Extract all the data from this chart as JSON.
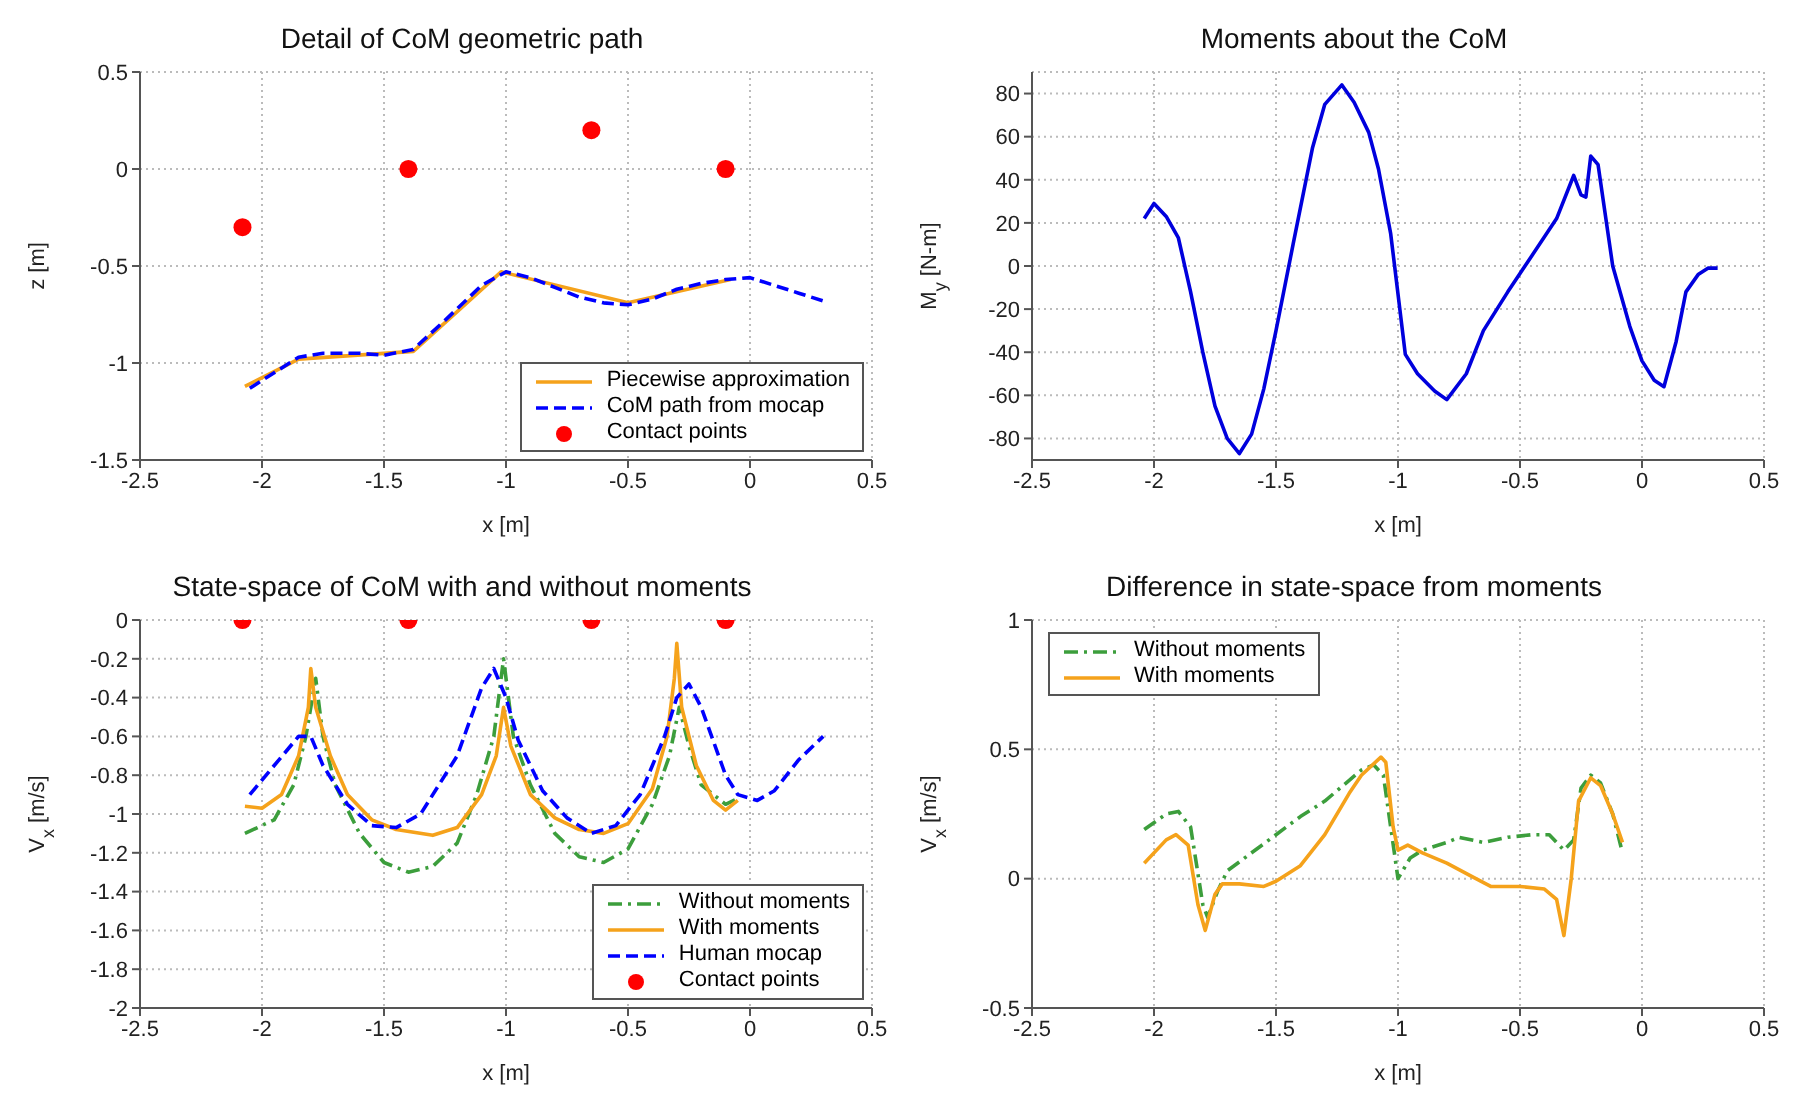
{
  "chart_data": [
    {
      "type": "line",
      "title": "Detail of CoM geometric path",
      "xlabel": "x [m]",
      "ylabel": "z [m]",
      "xlim": [
        -2.5,
        0.5
      ],
      "xticks": [
        -2.5,
        -2,
        -1.5,
        -1,
        -0.5,
        0,
        0.5
      ],
      "ylim": [
        -1.5,
        0.5
      ],
      "yticks": [
        -1.5,
        -1,
        -0.5,
        0,
        0.5
      ],
      "grid": true,
      "legend": "bottom right",
      "series": [
        {
          "name": "Piecewise approximation",
          "color": "#f5a21b",
          "line_style": "solid",
          "marker": "none",
          "x": [
            -2.07,
            -1.85,
            -1.38,
            -1.02,
            -0.5,
            -0.08
          ],
          "values": [
            -1.12,
            -0.98,
            -0.94,
            -0.53,
            -0.69,
            -0.57
          ]
        },
        {
          "name": "CoM path from mocap",
          "color": "#0000ff",
          "line_style": "dashed",
          "marker": "none",
          "x": [
            -2.05,
            -1.95,
            -1.85,
            -1.75,
            -1.6,
            -1.5,
            -1.38,
            -1.25,
            -1.1,
            -1.0,
            -0.9,
            -0.8,
            -0.7,
            -0.6,
            -0.5,
            -0.4,
            -0.3,
            -0.2,
            -0.1,
            0,
            0.1,
            0.2,
            0.3
          ],
          "values": [
            -1.13,
            -1.05,
            -0.97,
            -0.95,
            -0.95,
            -0.96,
            -0.93,
            -0.78,
            -0.6,
            -0.53,
            -0.56,
            -0.61,
            -0.66,
            -0.69,
            -0.7,
            -0.67,
            -0.62,
            -0.59,
            -0.57,
            -0.56,
            -0.6,
            -0.64,
            -0.68
          ]
        },
        {
          "name": "Contact points",
          "type": "scatter",
          "color": "#ff0000",
          "marker": "circle",
          "x": [
            -2.08,
            -1.4,
            -0.65,
            -0.1
          ],
          "values": [
            -0.3,
            0,
            0.2,
            0
          ]
        }
      ]
    },
    {
      "type": "line",
      "title": "Moments about the CoM",
      "xlabel": "x [m]",
      "ylabel": "M$_{y}$ [N-m]",
      "xlim": [
        -2.5,
        0.5
      ],
      "xticks": [
        -2.5,
        -2,
        -1.5,
        -1,
        -0.5,
        0,
        0.5
      ],
      "ylim": [
        -90,
        90
      ],
      "yticks": [
        -80,
        -60,
        -40,
        -20,
        0,
        20,
        40,
        60,
        80
      ],
      "grid": true,
      "series": [
        {
          "color": "#0000dd",
          "line_style": "solid",
          "marker": "none",
          "x": [
            -2.04,
            -2.0,
            -1.95,
            -1.9,
            -1.85,
            -1.8,
            -1.75,
            -1.7,
            -1.65,
            -1.6,
            -1.55,
            -1.5,
            -1.43,
            -1.35,
            -1.3,
            -1.23,
            -1.18,
            -1.12,
            -1.08,
            -1.03,
            -0.97,
            -0.92,
            -0.85,
            -0.8,
            -0.72,
            -0.65,
            -0.55,
            -0.45,
            -0.35,
            -0.28,
            -0.25,
            -0.23,
            -0.21,
            -0.18,
            -0.12,
            -0.05,
            0,
            0.05,
            0.09,
            0.14,
            0.18,
            0.23,
            0.27,
            0.31
          ],
          "values": [
            22,
            29,
            23,
            13,
            -12,
            -40,
            -65,
            -80,
            -87,
            -78,
            -57,
            -30,
            10,
            55,
            75,
            84,
            76,
            62,
            45,
            15,
            -41,
            -50,
            -58,
            -62,
            -50,
            -30,
            -12,
            5,
            22,
            42,
            33,
            32,
            51,
            47,
            0,
            -28,
            -44,
            -53,
            -56,
            -35,
            -12,
            -4,
            -1,
            -1
          ]
        }
      ]
    },
    {
      "type": "line",
      "title": "State-space of CoM with and without moments",
      "xlabel": "x [m]",
      "ylabel": "V$_{x}$ [m/s]",
      "xlim": [
        -2.5,
        0.5
      ],
      "xticks": [
        -2.5,
        -2,
        -1.5,
        -1,
        -0.5,
        0,
        0.5
      ],
      "ylim": [
        -2,
        0
      ],
      "yticks": [
        -2,
        -1.8,
        -1.6,
        -1.4,
        -1.2,
        -1,
        -0.8,
        -0.6,
        -0.4,
        -0.2,
        0
      ],
      "grid": true,
      "legend": "bottom right",
      "series": [
        {
          "name": "Without moments",
          "color": "#3c9e3c",
          "line_style": "dashdot",
          "marker": "none",
          "x": [
            -2.07,
            -1.95,
            -1.87,
            -1.82,
            -1.78,
            -1.75,
            -1.7,
            -1.6,
            -1.5,
            -1.4,
            -1.3,
            -1.2,
            -1.12,
            -1.05,
            -1.01,
            -0.97,
            -0.9,
            -0.8,
            -0.7,
            -0.6,
            -0.5,
            -0.4,
            -0.33,
            -0.29,
            -0.25,
            -0.2,
            -0.1,
            -0.05
          ],
          "values": [
            -1.1,
            -1.03,
            -0.85,
            -0.6,
            -0.3,
            -0.6,
            -0.85,
            -1.1,
            -1.25,
            -1.3,
            -1.27,
            -1.15,
            -0.9,
            -0.6,
            -0.2,
            -0.6,
            -0.85,
            -1.1,
            -1.22,
            -1.25,
            -1.18,
            -0.95,
            -0.7,
            -0.45,
            -0.65,
            -0.85,
            -0.95,
            -0.92
          ]
        },
        {
          "name": "With moments",
          "color": "#f5a21b",
          "line_style": "solid",
          "marker": "none",
          "x": [
            -2.07,
            -2.0,
            -1.92,
            -1.85,
            -1.81,
            -1.8,
            -1.78,
            -1.72,
            -1.65,
            -1.55,
            -1.45,
            -1.3,
            -1.2,
            -1.1,
            -1.04,
            -1.01,
            -0.98,
            -0.9,
            -0.8,
            -0.7,
            -0.6,
            -0.5,
            -0.4,
            -0.34,
            -0.31,
            -0.3,
            -0.28,
            -0.22,
            -0.15,
            -0.1,
            -0.05
          ],
          "values": [
            -0.96,
            -0.97,
            -0.9,
            -0.7,
            -0.45,
            -0.25,
            -0.45,
            -0.7,
            -0.9,
            -1.03,
            -1.08,
            -1.11,
            -1.07,
            -0.9,
            -0.7,
            -0.45,
            -0.65,
            -0.9,
            -1.02,
            -1.08,
            -1.1,
            -1.05,
            -0.87,
            -0.6,
            -0.3,
            -0.12,
            -0.45,
            -0.75,
            -0.93,
            -0.98,
            -0.93
          ]
        },
        {
          "name": "Human mocap",
          "color": "#0000ff",
          "line_style": "dashed",
          "marker": "none",
          "x": [
            -2.05,
            -1.95,
            -1.85,
            -1.8,
            -1.75,
            -1.65,
            -1.55,
            -1.45,
            -1.35,
            -1.2,
            -1.1,
            -1.05,
            -1.0,
            -0.95,
            -0.85,
            -0.75,
            -0.65,
            -0.55,
            -0.45,
            -0.35,
            -0.3,
            -0.25,
            -0.2,
            -0.1,
            -0.05,
            0.03,
            0.1,
            0.2,
            0.3
          ],
          "values": [
            -0.9,
            -0.75,
            -0.6,
            -0.6,
            -0.75,
            -0.95,
            -1.06,
            -1.07,
            -1.0,
            -0.7,
            -0.35,
            -0.25,
            -0.4,
            -0.62,
            -0.88,
            -1.02,
            -1.1,
            -1.06,
            -0.9,
            -0.6,
            -0.4,
            -0.33,
            -0.45,
            -0.8,
            -0.9,
            -0.93,
            -0.88,
            -0.72,
            -0.6
          ]
        },
        {
          "name": "Contact points",
          "type": "scatter",
          "color": "#ff0000",
          "marker": "circle",
          "x": [
            -2.08,
            -1.4,
            -0.65,
            -0.1
          ],
          "values": [
            0,
            0,
            0,
            0
          ]
        }
      ]
    },
    {
      "type": "line",
      "title": "Difference in state-space from moments",
      "xlabel": "x [m]",
      "ylabel": "V$_{x}$ [m/s]",
      "xlim": [
        -2.5,
        0.5
      ],
      "xticks": [
        -2.5,
        -2,
        -1.5,
        -1,
        -0.5,
        0,
        0.5
      ],
      "ylim": [
        -0.5,
        1
      ],
      "yticks": [
        -0.5,
        0,
        0.5,
        1
      ],
      "grid": true,
      "legend": "top left",
      "series": [
        {
          "name": "Without moments",
          "color": "#3c9e3c",
          "line_style": "dashdot",
          "marker": "none",
          "x": [
            -2.04,
            -1.95,
            -1.9,
            -1.85,
            -1.8,
            -1.78,
            -1.74,
            -1.7,
            -1.6,
            -1.5,
            -1.4,
            -1.3,
            -1.2,
            -1.15,
            -1.1,
            -1.06,
            -1.03,
            -1.0,
            -0.95,
            -0.9,
            -0.8,
            -0.75,
            -0.65,
            -0.55,
            -0.45,
            -0.38,
            -0.32,
            -0.28,
            -0.25,
            -0.21,
            -0.17,
            -0.12,
            -0.08
          ],
          "values": [
            0.19,
            0.25,
            0.26,
            0.2,
            -0.1,
            -0.15,
            -0.05,
            0.03,
            0.1,
            0.17,
            0.24,
            0.3,
            0.38,
            0.42,
            0.44,
            0.4,
            0.2,
            0.0,
            0.08,
            0.11,
            0.14,
            0.16,
            0.14,
            0.16,
            0.17,
            0.17,
            0.11,
            0.15,
            0.35,
            0.4,
            0.37,
            0.25,
            0.1
          ]
        },
        {
          "name": "With moments",
          "color": "#f5a21b",
          "line_style": "solid",
          "marker": "none",
          "x": [
            -2.04,
            -1.95,
            -1.91,
            -1.86,
            -1.82,
            -1.79,
            -1.75,
            -1.72,
            -1.65,
            -1.55,
            -1.5,
            -1.4,
            -1.3,
            -1.2,
            -1.15,
            -1.07,
            -1.05,
            -1.02,
            -1.0,
            -0.96,
            -0.9,
            -0.8,
            -0.7,
            -0.62,
            -0.5,
            -0.4,
            -0.35,
            -0.32,
            -0.29,
            -0.26,
            -0.21,
            -0.17,
            -0.12,
            -0.08
          ],
          "values": [
            0.06,
            0.15,
            0.17,
            0.13,
            -0.1,
            -0.2,
            -0.06,
            -0.02,
            -0.02,
            -0.03,
            -0.01,
            0.05,
            0.17,
            0.33,
            0.4,
            0.47,
            0.45,
            0.2,
            0.11,
            0.13,
            0.1,
            0.06,
            0.01,
            -0.03,
            -0.03,
            -0.04,
            -0.08,
            -0.22,
            0.0,
            0.3,
            0.39,
            0.36,
            0.25,
            0.14
          ]
        }
      ]
    }
  ]
}
